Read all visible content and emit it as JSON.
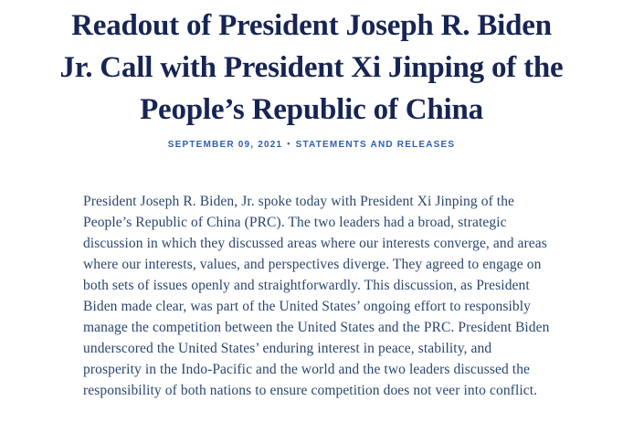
{
  "header": {
    "title": "Readout of President Joseph R. Biden Jr. Call with President Xi Jinping of the People’s Republic of China",
    "title_lines": [
      "Readout of President Joseph R. Biden",
      "Jr. Call with President Xi Jinping of the",
      "People’s Republic of China"
    ],
    "date": "SEPTEMBER 09, 2021",
    "separator": "•",
    "category": "STATEMENTS AND RELEASES"
  },
  "article": {
    "paragraph": "President Joseph R. Biden, Jr. spoke today with President Xi Jinping of the People’s Republic of China (PRC). The two leaders had a broad, strategic discussion in which they discussed areas where our interests converge, and areas where our interests, values, and perspectives diverge. They agreed to engage on both sets of issues openly and straightforwardly. This discussion, as President Biden made clear, was part of the United States’ ongoing effort to responsibly manage the competition between the United States and the PRC. President Biden underscored the United States’ enduring interest in peace, stability, and prosperity in the Indo-Pacific and the world and the two leaders discussed the responsibility of both nations to ensure competition does not veer into conflict."
  },
  "colors": {
    "title_navy": "#172554",
    "meta_blue": "#2e5fb0",
    "body_navy": "#2a466e",
    "background": "#ffffff"
  }
}
